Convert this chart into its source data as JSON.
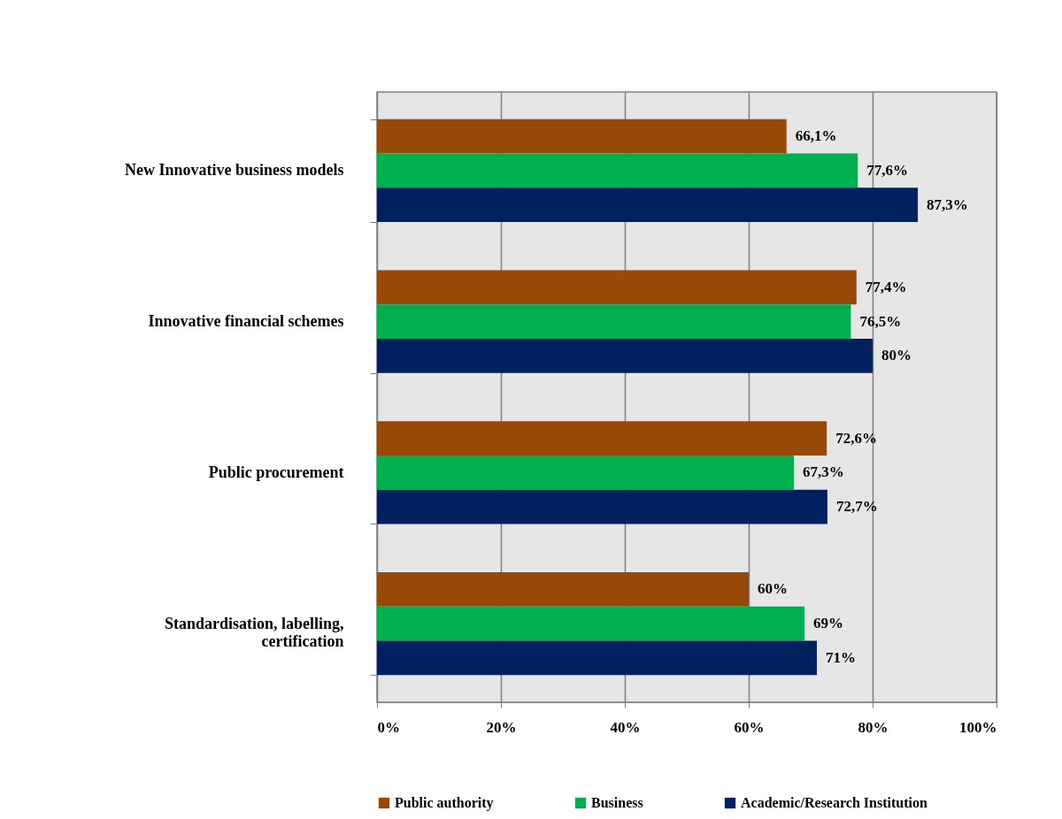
{
  "chart_data": {
    "type": "bar",
    "orientation": "horizontal",
    "categories": [
      "New Innovative business models",
      "Innovative financial schemes",
      "Public procurement",
      "Standardisation, labelling, certification"
    ],
    "series": [
      {
        "name": "Public authority",
        "color": "#984807",
        "values": [
          66.1,
          77.4,
          72.6,
          60
        ],
        "value_labels": [
          "66,1%",
          "77,4%",
          "72,6%",
          "60%"
        ]
      },
      {
        "name": "Business",
        "color": "#00b050",
        "values": [
          77.6,
          76.5,
          67.3,
          69
        ],
        "value_labels": [
          "77,6%",
          "76,5%",
          "67,3%",
          "69%"
        ]
      },
      {
        "name": "Academic/Research Institution",
        "color": "#002060",
        "values": [
          87.3,
          80,
          72.7,
          71
        ],
        "value_labels": [
          "87,3%",
          "80%",
          "72,7%",
          "71%"
        ]
      }
    ],
    "xlim": [
      0,
      100
    ],
    "xticks": [
      {
        "value": 0,
        "label": "0%"
      },
      {
        "value": 20,
        "label": "20%"
      },
      {
        "value": 40,
        "label": "40%"
      },
      {
        "value": 60,
        "label": "60%"
      },
      {
        "value": 80,
        "label": "80%"
      },
      {
        "value": 100,
        "label": "100%"
      }
    ],
    "grid": "x",
    "legend": "bottom"
  }
}
